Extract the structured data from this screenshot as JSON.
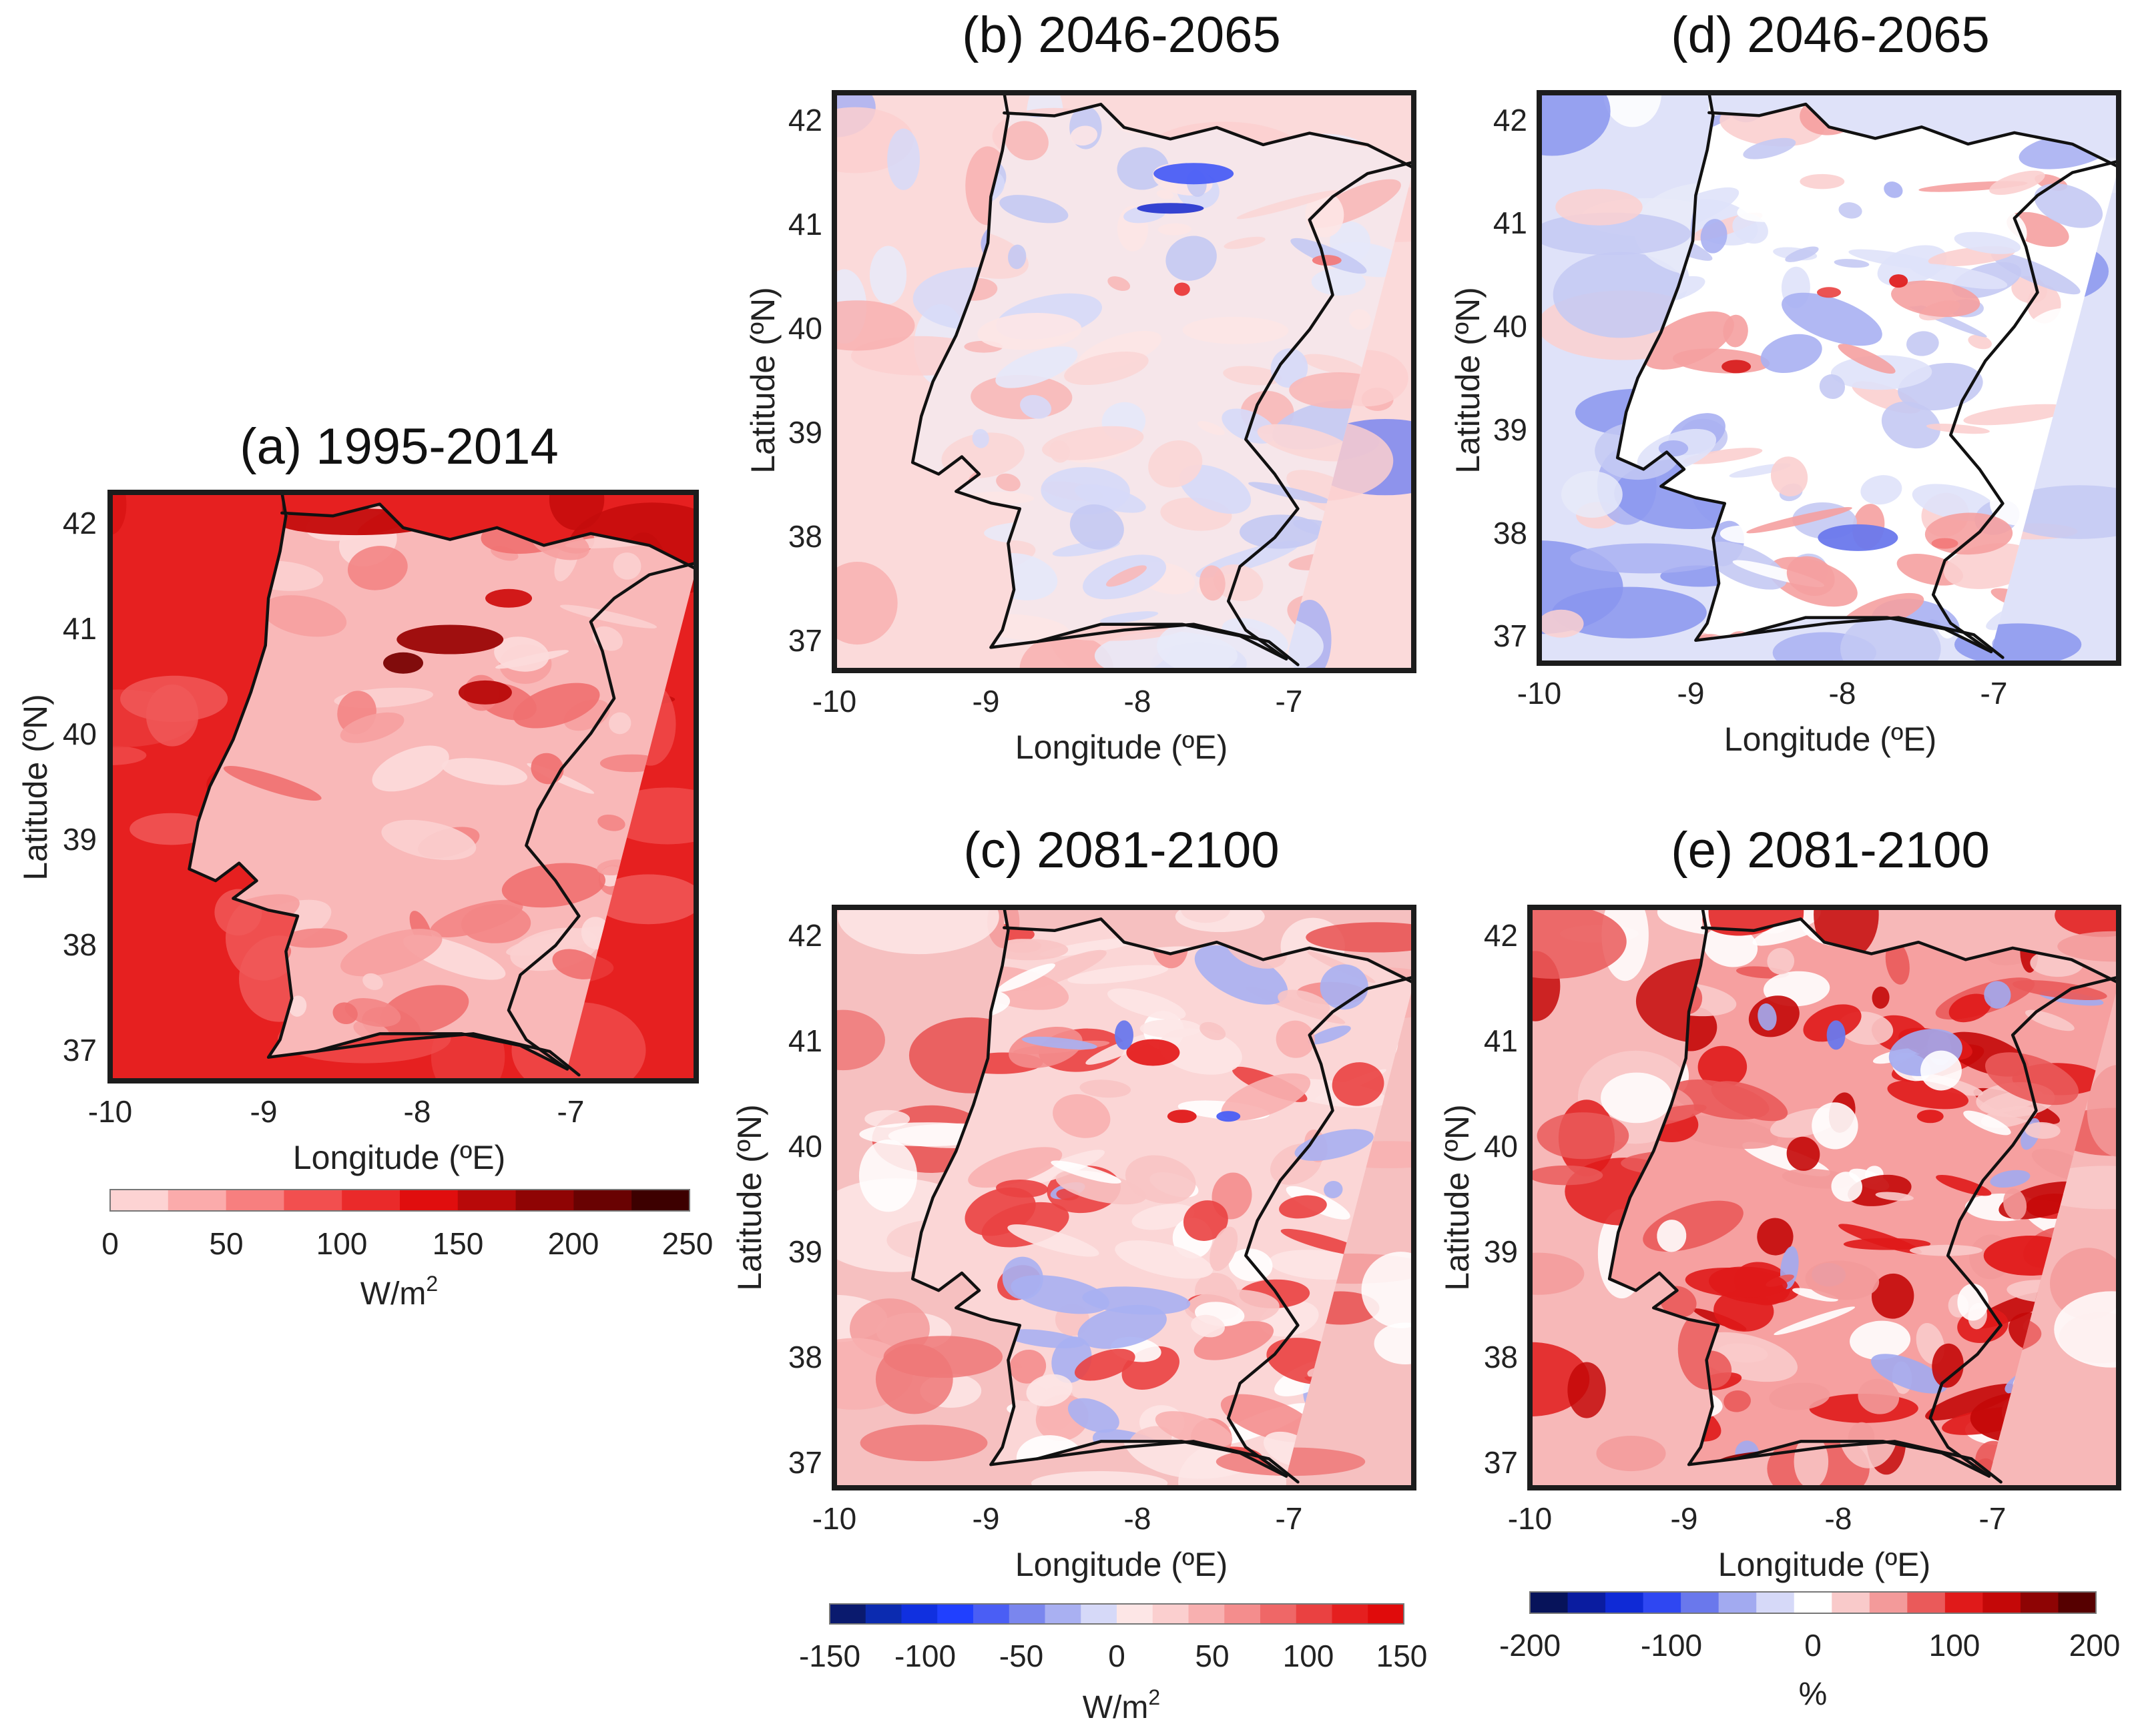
{
  "panels": [
    {
      "id": "a",
      "title": "(a) 1995-2014",
      "xlabel": "Longitude (ºE)",
      "ylabel": "Latitude (ºN)",
      "xticks": [
        "-10",
        "-9",
        "-8",
        "-7"
      ],
      "yticks": [
        "42",
        "41",
        "40",
        "39",
        "38",
        "37"
      ],
      "colormap": "reds",
      "field_description_levels": {
        "sea_west": 0.62,
        "north_coast": 0.7,
        "interior": 0.18,
        "hotspot": 0.95
      }
    },
    {
      "id": "b",
      "title": "(b) 2046-2065",
      "xlabel": "Longitude (ºE)",
      "ylabel": "Latitude (ºN)",
      "xticks": [
        "-10",
        "-9",
        "-8",
        "-7"
      ],
      "yticks": [
        "42",
        "41",
        "40",
        "39",
        "38",
        "37"
      ],
      "colormap": "diverging"
    },
    {
      "id": "d",
      "title": "(d) 2046-2065",
      "xlabel": "Longitude (ºE)",
      "ylabel": "Latitude (ºN)",
      "xticks": [
        "-10",
        "-9",
        "-8",
        "-7"
      ],
      "yticks": [
        "42",
        "41",
        "40",
        "39",
        "38",
        "37"
      ],
      "colormap": "diverging"
    },
    {
      "id": "c",
      "title": "(c) 2081-2100",
      "xlabel": "Longitude (ºE)",
      "ylabel": "Latitude (ºN)",
      "xticks": [
        "-10",
        "-9",
        "-8",
        "-7"
      ],
      "yticks": [
        "42",
        "41",
        "40",
        "39",
        "38",
        "37"
      ],
      "colormap": "diverging"
    },
    {
      "id": "e",
      "title": "(e) 2081-2100",
      "xlabel": "Longitude (ºE)",
      "ylabel": "Latitude (ºN)",
      "xticks": [
        "-10",
        "-9",
        "-8",
        "-7"
      ],
      "yticks": [
        "42",
        "41",
        "40",
        "39",
        "38",
        "37"
      ],
      "colormap": "diverging"
    }
  ],
  "colorbars": {
    "a": {
      "ticks": [
        "0",
        "50",
        "100",
        "150",
        "200",
        "250"
      ],
      "unit": "W/m",
      "unit_sup": "2",
      "colors": [
        "#fdd3d3",
        "#fbabab",
        "#f77f7f",
        "#f24f4f",
        "#ea2a2a",
        "#e00e0e",
        "#b80909",
        "#8f0404",
        "#690202",
        "#3d0000"
      ]
    },
    "c": {
      "ticks": [
        "-150",
        "-100",
        "-50",
        "0",
        "50",
        "100",
        "150"
      ],
      "unit": "W/m",
      "unit_sup": "2",
      "colors": [
        "#0a1a6e",
        "#0b2bb0",
        "#1030e0",
        "#2040ff",
        "#4a5ef5",
        "#7a86ee",
        "#a9b0f2",
        "#d6d9f8",
        "#fde6e6",
        "#fbcfcf",
        "#f8b0b0",
        "#f48d8d",
        "#ef6767",
        "#ea4141",
        "#e51f1f",
        "#e00b0b"
      ]
    },
    "e": {
      "ticks": [
        "-200",
        "-100",
        "0",
        "100",
        "200"
      ],
      "unit": "%",
      "unit_sup": "",
      "colors": [
        "#07135a",
        "#0a1ca0",
        "#0f2ad6",
        "#2f47f2",
        "#6a78ec",
        "#a2aaf0",
        "#d6d9f8",
        "#ffffff",
        "#f9caca",
        "#f39a9a",
        "#ea5a5a",
        "#e01a1a",
        "#c40808",
        "#8e0404",
        "#560000"
      ]
    }
  },
  "scheme_colors": {
    "frame": "#1c1c1c",
    "coastline": "#111111"
  }
}
